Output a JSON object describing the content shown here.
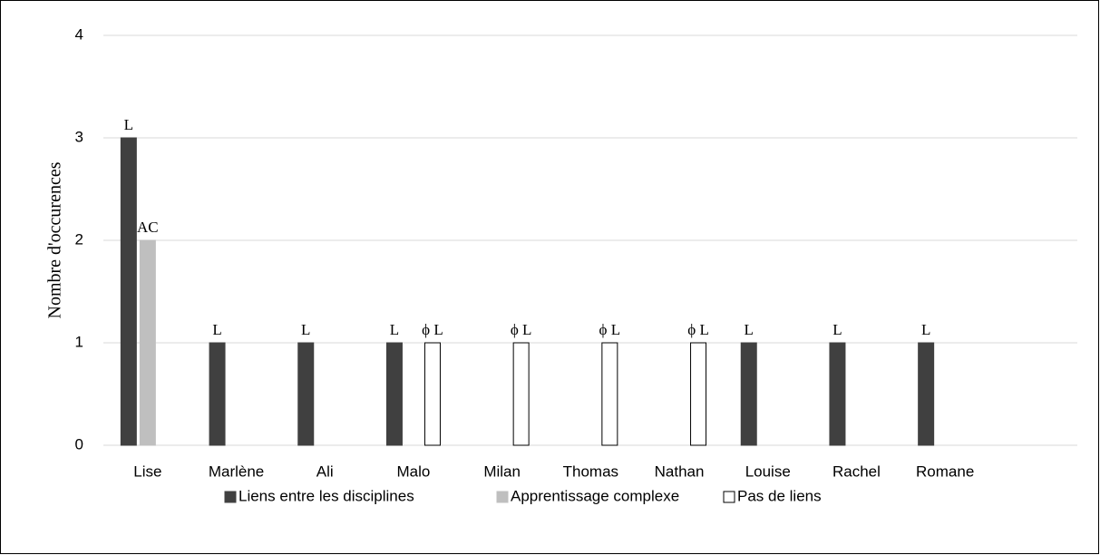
{
  "chart_data": {
    "type": "bar",
    "ylabel": "Nombre d'occurences",
    "categories": [
      "Lise",
      "Marlène",
      "Ali",
      "Malo",
      "Milan",
      "Thomas",
      "Nathan",
      "Louise",
      "Rachel",
      "Romane"
    ],
    "series": [
      {
        "name": "Liens entre les disciplines",
        "color": "#404040",
        "values": [
          3,
          1,
          1,
          1,
          null,
          null,
          null,
          1,
          1,
          1
        ],
        "value_labels": [
          "L",
          "L",
          "L",
          "L",
          null,
          null,
          null,
          "L",
          "L",
          "L"
        ]
      },
      {
        "name": "Apprentissage complexe",
        "color": "#bfbfbf",
        "values": [
          2,
          null,
          null,
          null,
          null,
          null,
          null,
          null,
          null,
          null
        ],
        "value_labels": [
          "AC",
          null,
          null,
          null,
          null,
          null,
          null,
          null,
          null,
          null
        ]
      },
      {
        "name": "Pas de liens",
        "color": "#ffffff",
        "values": [
          null,
          null,
          null,
          1,
          1,
          1,
          1,
          null,
          null,
          null
        ],
        "value_labels": [
          null,
          null,
          null,
          "ϕ L",
          "ϕ L",
          "ϕ L",
          "ϕ L",
          null,
          null,
          null
        ]
      }
    ],
    "ylim": [
      0,
      4
    ],
    "yticks": [
      0,
      1,
      2,
      3,
      4
    ],
    "grid": true,
    "legend": "bottom"
  }
}
